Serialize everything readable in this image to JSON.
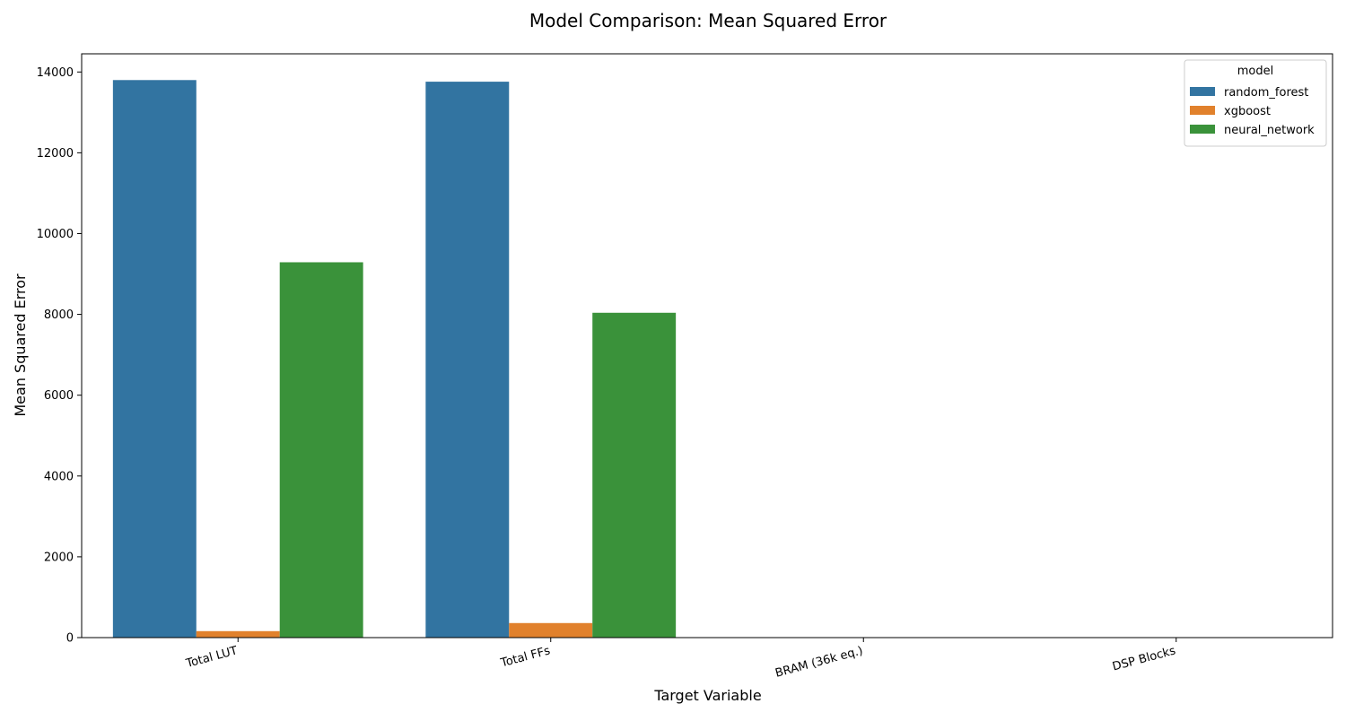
{
  "chart_data": {
    "type": "bar",
    "title": "Model Comparison: Mean Squared Error",
    "xlabel": "Target Variable",
    "ylabel": "Mean Squared Error",
    "categories": [
      "Total LUT",
      "Total FFs",
      "BRAM (36k eq.)",
      "DSP Blocks"
    ],
    "series": [
      {
        "name": "random_forest",
        "color": "#3274a1",
        "values": [
          13800,
          13760,
          0,
          0
        ]
      },
      {
        "name": "xgboost",
        "color": "#e1812c",
        "values": [
          160,
          360,
          0,
          0
        ]
      },
      {
        "name": "neural_network",
        "color": "#3a923a",
        "values": [
          9290,
          8040,
          0,
          0
        ]
      }
    ],
    "ylim": [
      0,
      14450
    ],
    "yticks": [
      0,
      2000,
      4000,
      6000,
      8000,
      10000,
      12000,
      14000
    ],
    "grid": false,
    "legend": {
      "title": "model",
      "position": "top-right"
    }
  }
}
